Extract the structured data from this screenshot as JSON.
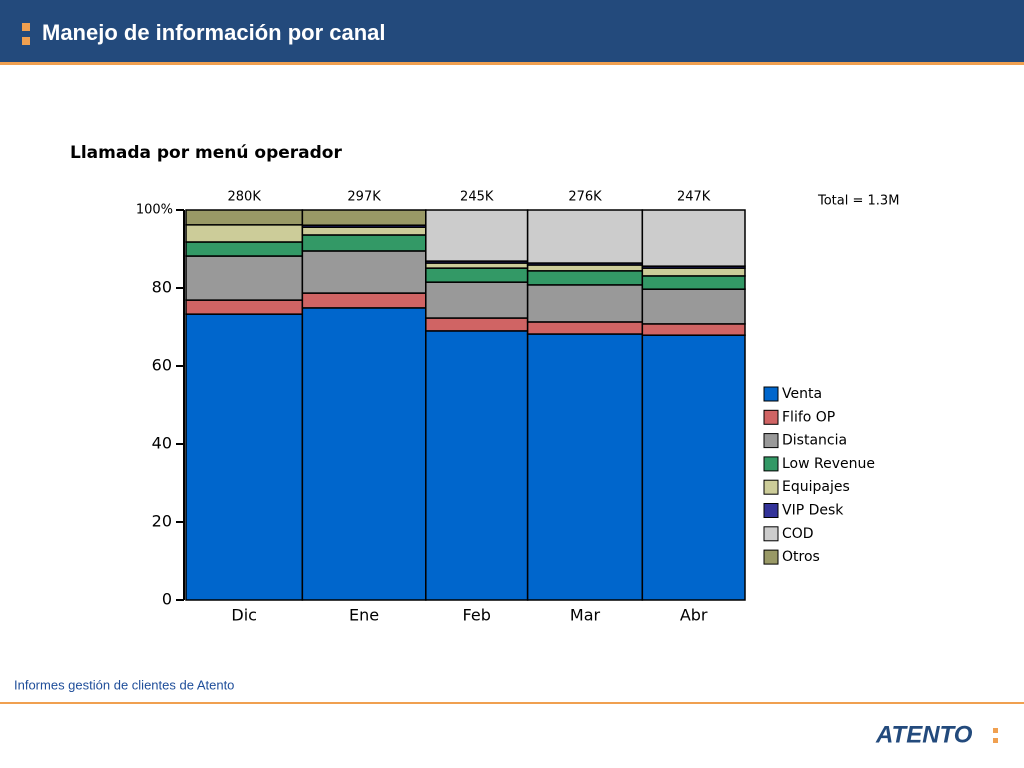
{
  "header": {
    "title": "Manejo de información por canal"
  },
  "footer": {
    "text": "Informes gestión de clientes de Atento",
    "logo": "ATENTO"
  },
  "chart_data": {
    "type": "marimekko",
    "title": "Llamada por menú operador",
    "annotation": "Total = 1.3M",
    "categories": [
      "Dic",
      "Ene",
      "Feb",
      "Mar",
      "Abr"
    ],
    "totals": {
      "values": [
        280,
        297,
        245,
        276,
        247
      ],
      "value_labels": [
        "280K",
        "297K",
        "245K",
        "276K",
        "247K"
      ]
    },
    "series": [
      {
        "name": "Venta",
        "color": "#0066cc",
        "values": [
          73.3,
          74.9,
          69.0,
          68.2,
          67.9
        ]
      },
      {
        "name": "Flifo OP",
        "color": "#d06464",
        "values": [
          3.6,
          3.8,
          3.3,
          3.1,
          2.9
        ]
      },
      {
        "name": "Distancia",
        "color": "#999999",
        "values": [
          11.3,
          10.8,
          9.2,
          9.5,
          8.9
        ]
      },
      {
        "name": "Low Revenue",
        "color": "#339966",
        "values": [
          3.6,
          4.1,
          3.6,
          3.6,
          3.4
        ]
      },
      {
        "name": "Equipajes",
        "color": "#cccc99",
        "values": [
          4.4,
          2.0,
          1.3,
          1.5,
          2.0
        ]
      },
      {
        "name": "VIP Desk",
        "color": "#333399",
        "values": [
          0,
          0.5,
          0.5,
          0.5,
          0.5
        ]
      },
      {
        "name": "COD",
        "color": "#cccccc",
        "values": [
          0,
          0,
          13.1,
          13.6,
          14.4
        ]
      },
      {
        "name": "Otros",
        "color": "#999966",
        "values": [
          3.8,
          3.9,
          0,
          0,
          0
        ]
      }
    ],
    "ylim": [
      0,
      100
    ],
    "yticks": [
      0,
      20,
      40,
      60,
      80,
      {
        "value": 100,
        "label": "100%"
      }
    ]
  }
}
